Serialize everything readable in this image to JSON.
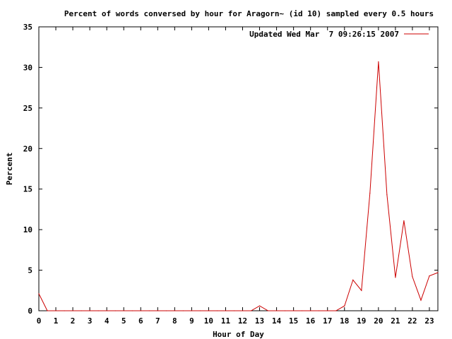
{
  "chart_data": {
    "type": "line",
    "title": "Percent of words conversed by hour for Aragorn~ (id 10) sampled every 0.5 hours",
    "xlabel": "Hour of Day",
    "ylabel": "Percent",
    "xlim": [
      0,
      23.5
    ],
    "ylim": [
      0,
      35
    ],
    "xticks": [
      0,
      1,
      2,
      3,
      4,
      5,
      6,
      7,
      8,
      9,
      10,
      11,
      12,
      13,
      14,
      15,
      16,
      17,
      18,
      19,
      20,
      21,
      22,
      23
    ],
    "yticks": [
      0,
      5,
      10,
      15,
      20,
      25,
      30,
      35
    ],
    "grid": false,
    "legend_position": "top-right",
    "series": [
      {
        "name": "Updated Wed Mar  7 09:26:15 2007",
        "color": "#cc0000",
        "x": [
          0,
          0.5,
          1,
          1.5,
          2,
          2.5,
          3,
          3.5,
          4,
          4.5,
          5,
          5.5,
          6,
          6.5,
          7,
          7.5,
          8,
          8.5,
          9,
          9.5,
          10,
          10.5,
          11,
          11.5,
          12,
          12.5,
          13,
          13.5,
          14,
          14.5,
          15,
          15.5,
          16,
          16.5,
          17,
          17.5,
          18,
          18.5,
          19,
          19.5,
          20,
          20.5,
          21,
          21.5,
          22,
          22.5,
          23,
          23.5
        ],
        "y": [
          2.1,
          0,
          0,
          0,
          0,
          0,
          0,
          0,
          0,
          0,
          0,
          0,
          0,
          0,
          0,
          0,
          0,
          0,
          0,
          0,
          0,
          0,
          0,
          0,
          0,
          0,
          0.6,
          0,
          0,
          0,
          0,
          0,
          0,
          0,
          0,
          0,
          0.6,
          3.8,
          2.5,
          14.5,
          30.7,
          14.3,
          4.1,
          11.1,
          4.2,
          1.3,
          4.3,
          4.7
        ]
      }
    ]
  }
}
